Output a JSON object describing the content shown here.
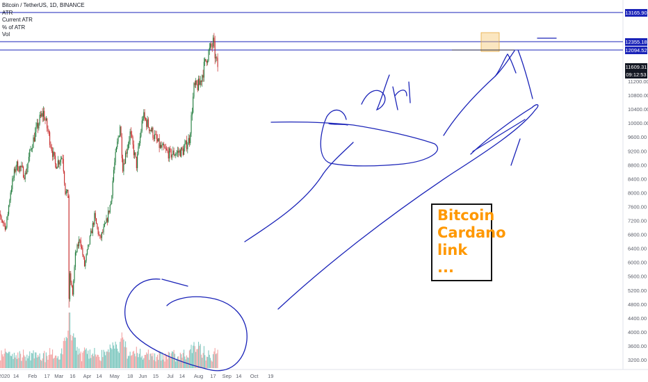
{
  "header": {
    "symbol": "Bitcoin / TetherUS, 1D, BINANCE",
    "indicators": [
      "ATR",
      "Current ATR",
      "% of ATR",
      "Vol"
    ]
  },
  "note": {
    "lines": [
      "Bitcoin",
      "Cardano",
      "link",
      "..."
    ],
    "color": "#ff9800"
  },
  "annotation_text": "Sell",
  "price_tags": {
    "level_high": "13165.90",
    "level_mid": "12355.18",
    "level_low": "12094.52",
    "last_price": "11609.31",
    "countdown": "09:12:53"
  },
  "colors": {
    "up": "#1e7a3a",
    "down": "#c62828",
    "vol_up": "#7fc8c0",
    "vol_down": "#f3a3a3",
    "drawing": "#1a23b8",
    "highlight": "#f7c873",
    "axis_text": "#5d606b"
  },
  "chart_data": {
    "type": "candlestick",
    "symbol": "Bitcoin / TetherUS",
    "interval": "1D",
    "exchange": "BINANCE",
    "y_ticks": [
      3200,
      3600,
      4000,
      4400,
      4800,
      5200,
      5600,
      6000,
      6400,
      6800,
      7200,
      7600,
      8000,
      8400,
      8800,
      9200,
      9600,
      10000,
      10400,
      10800,
      11200
    ],
    "ylim": [
      3000,
      13400
    ],
    "x_ticks": [
      "2020",
      "14",
      "Feb",
      "17",
      "Mar",
      "16",
      "Apr",
      "14",
      "May",
      "18",
      "Jun",
      "15",
      "Jul",
      "14",
      "Aug",
      "17",
      "Sep",
      "14",
      "Oct",
      "19"
    ],
    "horizontal_levels": [
      13165.9,
      12355.18,
      12094.52
    ],
    "last_price": 11609.31,
    "close_path": [
      {
        "date": "2019-12-19",
        "close": 7150
      },
      {
        "date": "2019-12-28",
        "close": 7300
      },
      {
        "date": "2020-01-03",
        "close": 7000
      },
      {
        "date": "2020-01-08",
        "close": 8050
      },
      {
        "date": "2020-01-14",
        "close": 8800
      },
      {
        "date": "2020-01-19",
        "close": 8700
      },
      {
        "date": "2020-01-24",
        "close": 8500
      },
      {
        "date": "2020-01-31",
        "close": 9350
      },
      {
        "date": "2020-02-09",
        "close": 10100
      },
      {
        "date": "2020-02-13",
        "close": 10300
      },
      {
        "date": "2020-02-19",
        "close": 9650
      },
      {
        "date": "2020-02-26",
        "close": 8800
      },
      {
        "date": "2020-03-05",
        "close": 9050
      },
      {
        "date": "2020-03-08",
        "close": 8050
      },
      {
        "date": "2020-03-11",
        "close": 7900
      },
      {
        "date": "2020-03-12",
        "close": 4950
      },
      {
        "date": "2020-03-13",
        "close": 5600
      },
      {
        "date": "2020-03-16",
        "close": 5100
      },
      {
        "date": "2020-03-19",
        "close": 6200
      },
      {
        "date": "2020-03-24",
        "close": 6700
      },
      {
        "date": "2020-03-29",
        "close": 5900
      },
      {
        "date": "2020-04-05",
        "close": 6800
      },
      {
        "date": "2020-04-09",
        "close": 7300
      },
      {
        "date": "2020-04-15",
        "close": 6650
      },
      {
        "date": "2020-04-22",
        "close": 7150
      },
      {
        "date": "2020-04-27",
        "close": 7750
      },
      {
        "date": "2020-04-30",
        "close": 8650
      },
      {
        "date": "2020-05-07",
        "close": 9950
      },
      {
        "date": "2020-05-10",
        "close": 8750
      },
      {
        "date": "2020-05-18",
        "close": 9700
      },
      {
        "date": "2020-05-25",
        "close": 8800
      },
      {
        "date": "2020-06-01",
        "close": 10200
      },
      {
        "date": "2020-06-10",
        "close": 9800
      },
      {
        "date": "2020-06-20",
        "close": 9300
      },
      {
        "date": "2020-07-01",
        "close": 9100
      },
      {
        "date": "2020-07-15",
        "close": 9200
      },
      {
        "date": "2020-07-22",
        "close": 9550
      },
      {
        "date": "2020-07-27",
        "close": 11000
      },
      {
        "date": "2020-08-02",
        "close": 11100
      },
      {
        "date": "2020-08-10",
        "close": 11900
      },
      {
        "date": "2020-08-17",
        "close": 12300
      },
      {
        "date": "2020-08-20",
        "close": 11800
      },
      {
        "date": "2020-08-22",
        "close": 11609
      }
    ],
    "volume": "relative volume histogram, peak around 2020-03-12"
  }
}
